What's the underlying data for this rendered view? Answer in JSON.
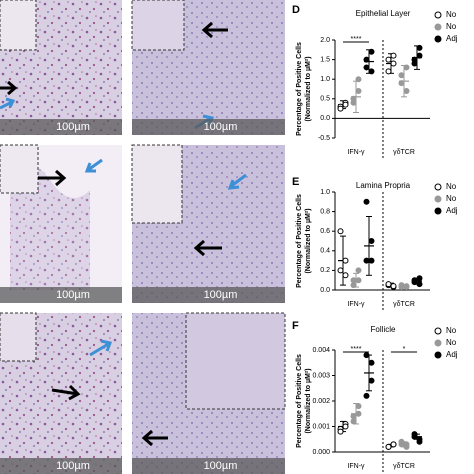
{
  "images": [
    {
      "scale": "100µm"
    },
    {
      "scale": "100µm"
    },
    {
      "scale": "100µm"
    },
    {
      "scale": "100µm"
    },
    {
      "scale": "100µm"
    },
    {
      "scale": "100µm"
    }
  ],
  "chart_data": [
    {
      "type": "scatter",
      "letter": "D",
      "title": "Epithelial Layer",
      "y_label": [
        "Percentage of Positive Cells",
        "(Normalized to µM²)"
      ],
      "categories": [
        "IFN-γ",
        "γδTCR"
      ],
      "ylim": [
        -0.5,
        2.0
      ],
      "yticks": [
        {
          "value": -0.5,
          "label": "-0.5"
        },
        {
          "value": 0,
          "label": "0.0"
        },
        {
          "value": 0.5,
          "label": "0.5"
        },
        {
          "value": 1,
          "label": "1.0"
        },
        {
          "value": 1.5,
          "label": "1.5"
        },
        {
          "value": 2,
          "label": "2.0"
        }
      ],
      "series": [
        {
          "name": "No",
          "color": "#000000",
          "marker": "open",
          "values": [
            [
              0.3,
              0.4,
              0.25,
              0.35
            ],
            [
              1.5,
              1.6,
              1.2,
              1.4
            ]
          ],
          "means": [
            0.35,
            1.4
          ],
          "errors": [
            0.1,
            0.25
          ]
        },
        {
          "name": "No",
          "color": "#999999",
          "marker": "filled",
          "values": [
            [
              0.5,
              0.7,
              0.4,
              1.0
            ],
            [
              1.1,
              0.7,
              0.9,
              1.3
            ]
          ],
          "means": [
            0.55,
            0.95
          ],
          "errors": [
            0.4,
            0.4
          ]
        },
        {
          "name": "Adj",
          "color": "#000000",
          "marker": "filled",
          "values": [
            [
              1.3,
              1.7,
              1.5,
              1.2
            ],
            [
              1.5,
              1.8,
              1.4,
              1.6
            ]
          ],
          "means": [
            1.45,
            1.55
          ],
          "errors": [
            0.3,
            0.3
          ]
        }
      ],
      "annotations": [
        "****"
      ]
    },
    {
      "type": "scatter",
      "letter": "E",
      "title": "Lamina Propria",
      "y_label": [
        "Percentage of Positive Cells",
        "(Normalized to µM²)"
      ],
      "categories": [
        "IFN-γ",
        "γδTCR"
      ],
      "ylim": [
        0,
        1.0
      ],
      "yticks": [
        {
          "value": 0,
          "label": "0.0"
        },
        {
          "value": 0.2,
          "label": "0.2"
        },
        {
          "value": 0.4,
          "label": "0.4"
        },
        {
          "value": 0.6,
          "label": "0.6"
        },
        {
          "value": 0.8,
          "label": "0.8"
        },
        {
          "value": 1,
          "label": "1.0"
        }
      ],
      "series": [
        {
          "name": "No",
          "color": "#000000",
          "marker": "open",
          "values": [
            [
              0.2,
              0.15,
              0.6,
              0.3
            ],
            [
              0.05,
              0.03,
              0.06,
              0.04
            ]
          ],
          "means": [
            0.3,
            0.05
          ],
          "errors": [
            0.25,
            0.02
          ]
        },
        {
          "name": "No",
          "color": "#999999",
          "marker": "filled",
          "values": [
            [
              0.1,
              0.2,
              0.05,
              0.1
            ],
            [
              0.03,
              0.04,
              0.05,
              0.03
            ]
          ],
          "means": [
            0.1,
            0.04
          ],
          "errors": [
            0.07,
            0.01
          ]
        },
        {
          "name": "Adj",
          "color": "#000000",
          "marker": "filled",
          "values": [
            [
              0.9,
              0.5,
              0.3,
              0.3
            ],
            [
              0.1,
              0.12,
              0.08,
              0.06
            ]
          ],
          "means": [
            0.45,
            0.09
          ],
          "errors": [
            0.3,
            0.03
          ]
        }
      ],
      "annotations": []
    },
    {
      "type": "scatter",
      "letter": "F",
      "title": "Follicle",
      "y_label": [
        "Percentage of Positive Cells",
        "(Normalized to µM²)"
      ],
      "categories": [
        "IFN-γ",
        "γδTCR"
      ],
      "ylim": [
        0,
        0.004
      ],
      "yticks": [
        {
          "value": 0,
          "label": "0.000"
        },
        {
          "value": 0.001,
          "label": "0.001"
        },
        {
          "value": 0.002,
          "label": "0.002"
        },
        {
          "value": 0.003,
          "label": "0.003"
        },
        {
          "value": 0.004,
          "label": "0.004"
        }
      ],
      "series": [
        {
          "name": "No",
          "color": "#000000",
          "marker": "open",
          "values": [
            [
              0.0009,
              0.0011,
              0.0008,
              0.001
            ],
            [
              0.0002,
              0.0003,
              0.0002,
              0.0003
            ]
          ],
          "means": [
            0.001,
            0.00025
          ],
          "errors": [
            0.0002,
            5e-05
          ]
        },
        {
          "name": "No",
          "color": "#999999",
          "marker": "filled",
          "values": [
            [
              0.0012,
              0.0018,
              0.0014,
              0.0015
            ],
            [
              0.0003,
              0.0002,
              0.0004,
              0.0003
            ]
          ],
          "means": [
            0.0015,
            0.0003
          ],
          "errors": [
            0.0004,
            0.0001
          ]
        },
        {
          "name": "Adj",
          "color": "#000000",
          "marker": "filled",
          "values": [
            [
              0.0038,
              0.0028,
              0.0022,
              0.0035
            ],
            [
              0.0007,
              0.0005,
              0.0006,
              0.0004
            ]
          ],
          "means": [
            0.0031,
            0.0006
          ],
          "errors": [
            0.0007,
            0.0001
          ]
        }
      ],
      "annotations": [
        "****",
        "*"
      ]
    }
  ]
}
